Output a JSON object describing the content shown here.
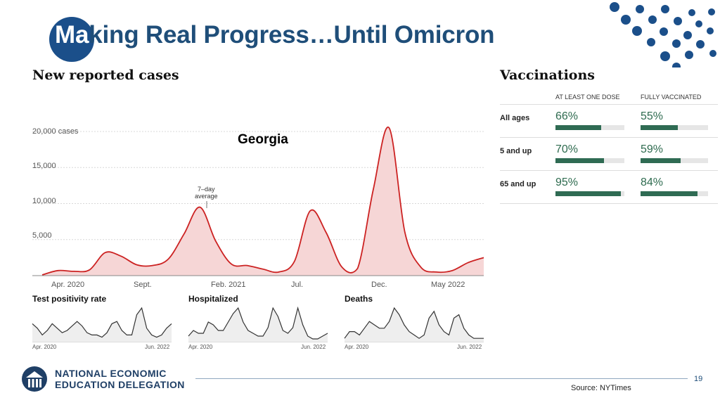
{
  "title": "Making Real Progress…Until Omicron",
  "title_highlight": "Ma",
  "title_rest": "king Real Progress…Until Omicron",
  "colors": {
    "accent": "#1b4f8a",
    "line": "#cc2222",
    "fill": "#f6d6d6",
    "vax": "#2f6b53"
  },
  "chart_data": [
    {
      "type": "area",
      "title": "New reported cases",
      "annotation": "Georgia",
      "average_label_1": "7–day",
      "average_label_2": "average",
      "yticks": [
        "20,000 cases",
        "15,000",
        "10,000",
        "5,000"
      ],
      "ytick_values": [
        20000,
        15000,
        10000,
        5000
      ],
      "xticks": [
        "Apr. 2020",
        "Sept.",
        "Feb. 2021",
        "Jul.",
        "Dec.",
        "May 2022"
      ],
      "ylim": [
        0,
        22000
      ],
      "x": [
        "2020-03",
        "2020-04",
        "2020-05",
        "2020-06",
        "2020-07",
        "2020-08",
        "2020-09",
        "2020-10",
        "2020-11",
        "2020-12",
        "2021-01",
        "2021-02",
        "2021-03",
        "2021-04",
        "2021-05",
        "2021-06",
        "2021-07",
        "2021-08",
        "2021-09",
        "2021-10",
        "2021-11",
        "2021-12",
        "2022-01",
        "2022-02",
        "2022-03",
        "2022-04",
        "2022-05",
        "2022-06",
        "2022-07"
      ],
      "values": [
        100,
        700,
        600,
        800,
        3200,
        2700,
        1500,
        1400,
        2300,
        5800,
        9500,
        4800,
        1600,
        1400,
        900,
        500,
        2000,
        9000,
        6000,
        1200,
        1000,
        12000,
        20500,
        6000,
        1200,
        500,
        700,
        1800,
        2500
      ]
    },
    {
      "type": "line",
      "title": "Test positivity rate",
      "xticks": [
        "Apr. 2020",
        "Jun. 2022"
      ],
      "values": [
        8,
        6,
        3,
        5,
        8,
        6,
        4,
        5,
        7,
        9,
        7,
        4,
        3,
        3,
        2,
        4,
        8,
        9,
        5,
        3,
        3,
        12,
        15,
        6,
        3,
        2,
        3,
        6,
        8
      ]
    },
    {
      "type": "line",
      "title": "Hospitalized",
      "xticks": [
        "Apr. 2020",
        "Jun. 2022"
      ],
      "values": [
        2,
        4,
        3,
        3,
        7,
        6,
        4,
        4,
        7,
        10,
        12,
        7,
        4,
        3,
        2,
        2,
        5,
        12,
        9,
        4,
        3,
        5,
        12,
        6,
        2,
        1,
        1,
        2,
        3
      ]
    },
    {
      "type": "line",
      "title": "Deaths",
      "xticks": [
        "Apr. 2020",
        "Jun. 2022"
      ],
      "values": [
        1,
        3,
        3,
        2,
        4,
        6,
        5,
        4,
        4,
        6,
        10,
        8,
        5,
        3,
        2,
        1,
        2,
        7,
        9,
        5,
        3,
        2,
        7,
        8,
        4,
        2,
        1,
        1,
        1
      ]
    }
  ],
  "vaccinations": {
    "title": "Vaccinations",
    "col1": "AT LEAST ONE DOSE",
    "col2": "FULLY VACCINATED",
    "rows": [
      {
        "label": "All ages",
        "one_dose": "66%",
        "one_dose_value": 0.66,
        "full": "55%",
        "full_value": 0.55
      },
      {
        "label": "5 and up",
        "one_dose": "70%",
        "one_dose_value": 0.7,
        "full": "59%",
        "full_value": 0.59
      },
      {
        "label": "65 and up",
        "one_dose": "95%",
        "one_dose_value": 0.95,
        "full": "84%",
        "full_value": 0.84
      }
    ]
  },
  "logo": {
    "line1": "NATIONAL ECONOMIC",
    "line2": "EDUCATION DELEGATION"
  },
  "page_number": "19",
  "source": "Source: NYTimes"
}
